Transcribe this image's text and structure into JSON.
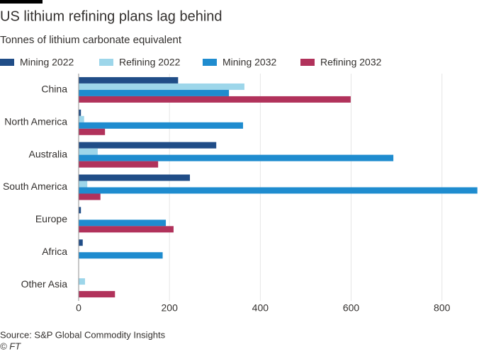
{
  "chart_data": {
    "type": "hbar",
    "title": "US lithium refining plans lag behind",
    "subtitle": "Tonnes of lithium carbonate equivalent",
    "categories": [
      "China",
      "North America",
      "Australia",
      "South America",
      "Europe",
      "Africa",
      "Other Asia"
    ],
    "series": [
      {
        "name": "Mining 2022",
        "color": "#204d87",
        "values": [
          219,
          5,
          303,
          245,
          5,
          9,
          0
        ]
      },
      {
        "name": "Refining 2022",
        "color": "#9dd6ea",
        "values": [
          365,
          12,
          42,
          19,
          0,
          0,
          14
        ]
      },
      {
        "name": "Mining 2032",
        "color": "#1f8ccf",
        "values": [
          331,
          362,
          693,
          878,
          192,
          185,
          0
        ]
      },
      {
        "name": "Refining 2032",
        "color": "#b1325b",
        "values": [
          599,
          58,
          175,
          48,
          209,
          0,
          80
        ]
      }
    ],
    "xlim": [
      0,
      880
    ],
    "xticks": [
      0,
      200,
      400,
      600,
      800
    ],
    "grid": true,
    "source": "Source: S&P Global Commodity Insights",
    "credit": "© FT"
  }
}
